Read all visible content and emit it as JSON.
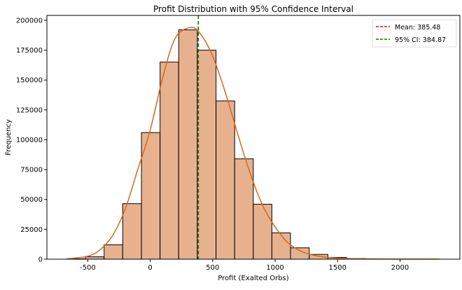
{
  "chart_data": {
    "type": "bar",
    "title": "Profit Distribution with 95% Confidence Interval",
    "xlabel": "Profit (Exalted Orbs)",
    "ylabel": "Frequency",
    "xlim": [
      -827,
      2479
    ],
    "ylim": [
      0,
      204100
    ],
    "xticks": [
      -500,
      0,
      500,
      1000,
      1500,
      2000
    ],
    "yticks": [
      0,
      25000,
      50000,
      75000,
      100000,
      125000,
      150000,
      175000,
      200000
    ],
    "grid": false,
    "legend_position": "top-right",
    "bin_edges": [
      -667,
      -518,
      -369,
      -220,
      -70,
      79,
      228,
      377,
      527,
      676,
      825,
      974,
      1123,
      1273,
      1422,
      1571,
      1720,
      1870,
      2019,
      2168,
      2317
    ],
    "values": [
      300,
      2000,
      12000,
      46500,
      106000,
      165000,
      192000,
      175000,
      132500,
      84000,
      46000,
      22000,
      9500,
      4000,
      1500,
      500,
      200,
      100,
      50,
      20
    ],
    "bar_color": "#e8b18d",
    "kde": {
      "color": "#d2691e",
      "x": [
        -667,
        -500,
        -400,
        -300,
        -200,
        -100,
        0,
        100,
        200,
        320,
        400,
        500,
        600,
        700,
        800,
        900,
        1000,
        1100,
        1200,
        1300,
        1400,
        1500,
        1700,
        2000,
        2316
      ],
      "y": [
        300,
        2500,
        8000,
        20000,
        42000,
        75000,
        108000,
        152000,
        185000,
        194000,
        189000,
        170000,
        140000,
        105000,
        72000,
        45000,
        27000,
        14000,
        7000,
        3500,
        1700,
        900,
        300,
        100,
        50
      ]
    },
    "lines": [
      {
        "name": "Mean: 385.48",
        "x": 385.48,
        "color": "#ff0000"
      },
      {
        "name": "95% CI: 384.87",
        "x": 384.87,
        "color": "#008000"
      }
    ]
  }
}
